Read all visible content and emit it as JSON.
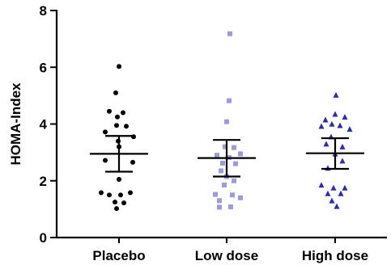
{
  "chart_data": {
    "type": "scatter",
    "title": "",
    "xlabel": "",
    "ylabel": "HOMA-Index",
    "ylim": [
      0,
      8
    ],
    "yticks": [
      0,
      2,
      4,
      6,
      8
    ],
    "grid": false,
    "legend": "none",
    "categories": [
      "Placebo",
      "Low dose",
      "High dose"
    ],
    "series": [
      {
        "category": "Placebo",
        "marker": "circle",
        "color": "#000000",
        "mean": 2.95,
        "error_low": 2.32,
        "error_high": 3.58,
        "points": [
          {
            "x_offset": 0.0,
            "y": 6.03
          },
          {
            "x_offset": -0.04,
            "y": 5.1
          },
          {
            "x_offset": -0.12,
            "y": 4.45
          },
          {
            "x_offset": 0.05,
            "y": 4.4
          },
          {
            "x_offset": -0.02,
            "y": 4.25
          },
          {
            "x_offset": -0.17,
            "y": 3.72
          },
          {
            "x_offset": -0.03,
            "y": 3.95
          },
          {
            "x_offset": 0.09,
            "y": 3.92
          },
          {
            "x_offset": 0.18,
            "y": 3.55
          },
          {
            "x_offset": -0.01,
            "y": 3.4
          },
          {
            "x_offset": 0.0,
            "y": 3.2
          },
          {
            "x_offset": -0.17,
            "y": 2.72
          },
          {
            "x_offset": 0.17,
            "y": 2.65
          },
          {
            "x_offset": 0.0,
            "y": 2.05
          },
          {
            "x_offset": -0.22,
            "y": 1.58
          },
          {
            "x_offset": 0.14,
            "y": 1.58
          },
          {
            "x_offset": -0.12,
            "y": 1.5
          },
          {
            "x_offset": 0.02,
            "y": 1.5
          },
          {
            "x_offset": -0.05,
            "y": 1.25
          },
          {
            "x_offset": 0.06,
            "y": 1.22
          },
          {
            "x_offset": -0.03,
            "y": 1.02
          }
        ]
      },
      {
        "category": "Low dose",
        "marker": "square",
        "color": "#9b9be0",
        "mean": 2.8,
        "error_low": 2.15,
        "error_high": 3.44,
        "points": [
          {
            "x_offset": 0.04,
            "y": 7.18
          },
          {
            "x_offset": 0.03,
            "y": 4.82
          },
          {
            "x_offset": 0.0,
            "y": 4.08
          },
          {
            "x_offset": -0.02,
            "y": 3.2
          },
          {
            "x_offset": 0.09,
            "y": 3.17
          },
          {
            "x_offset": -0.12,
            "y": 2.9
          },
          {
            "x_offset": 0.17,
            "y": 2.95
          },
          {
            "x_offset": 0.03,
            "y": 2.82
          },
          {
            "x_offset": -0.05,
            "y": 2.62
          },
          {
            "x_offset": 0.11,
            "y": 2.6
          },
          {
            "x_offset": -0.07,
            "y": 2.35
          },
          {
            "x_offset": 0.0,
            "y": 2.15
          },
          {
            "x_offset": 0.09,
            "y": 2.0
          },
          {
            "x_offset": -0.03,
            "y": 1.85
          },
          {
            "x_offset": -0.14,
            "y": 1.52
          },
          {
            "x_offset": 0.07,
            "y": 1.5
          },
          {
            "x_offset": -0.09,
            "y": 1.3
          },
          {
            "x_offset": 0.17,
            "y": 1.4
          },
          {
            "x_offset": -0.09,
            "y": 1.07
          },
          {
            "x_offset": 0.05,
            "y": 1.08
          }
        ]
      },
      {
        "category": "High dose",
        "marker": "triangle",
        "color": "#2b2bb8",
        "mean": 2.97,
        "error_low": 2.42,
        "error_high": 3.5,
        "points": [
          {
            "x_offset": 0.01,
            "y": 5.02
          },
          {
            "x_offset": 0.0,
            "y": 4.35
          },
          {
            "x_offset": -0.12,
            "y": 4.15
          },
          {
            "x_offset": 0.12,
            "y": 4.25
          },
          {
            "x_offset": -0.17,
            "y": 3.92
          },
          {
            "x_offset": -0.04,
            "y": 4.0
          },
          {
            "x_offset": 0.06,
            "y": 3.95
          },
          {
            "x_offset": 0.18,
            "y": 3.82
          },
          {
            "x_offset": -0.05,
            "y": 3.55
          },
          {
            "x_offset": -0.11,
            "y": 3.3
          },
          {
            "x_offset": 0.09,
            "y": 3.2
          },
          {
            "x_offset": 0.0,
            "y": 2.95
          },
          {
            "x_offset": 0.09,
            "y": 2.7
          },
          {
            "x_offset": -0.09,
            "y": 2.45
          },
          {
            "x_offset": -0.17,
            "y": 1.85
          },
          {
            "x_offset": -0.02,
            "y": 1.75
          },
          {
            "x_offset": 0.12,
            "y": 1.75
          },
          {
            "x_offset": -0.09,
            "y": 1.55
          },
          {
            "x_offset": 0.07,
            "y": 1.55
          },
          {
            "x_offset": -0.04,
            "y": 1.3
          },
          {
            "x_offset": 0.02,
            "y": 1.1
          }
        ]
      }
    ]
  }
}
